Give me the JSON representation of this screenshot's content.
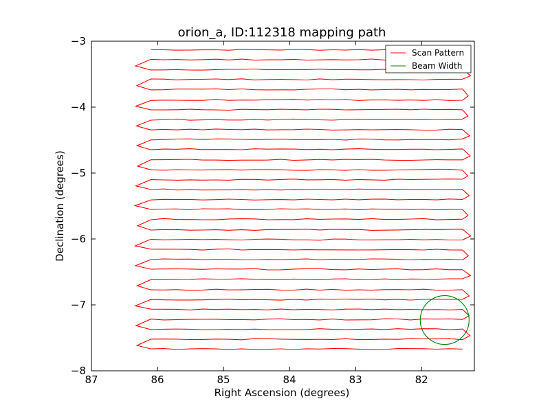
{
  "chart_data": {
    "type": "line",
    "title": "orion_a, ID:112318 mapping path",
    "xlabel": "Right Ascension (degrees)",
    "ylabel": "Declination (degrees)",
    "xlim": [
      87,
      81.2
    ],
    "ylim": [
      -8,
      -3
    ],
    "x_inverted": true,
    "x_ticks": [
      87,
      86,
      85,
      84,
      83,
      82
    ],
    "x_tick_labels": [
      "87",
      "86",
      "85",
      "84",
      "83",
      "82"
    ],
    "y_ticks": [
      -8,
      -7,
      -6,
      -5,
      -4,
      -3
    ],
    "y_tick_labels": [
      "−8",
      "−7",
      "−6",
      "−5",
      "−4",
      "−3"
    ],
    "grid": false,
    "legend_position": "top-right",
    "series": [
      {
        "name": "Scan Pattern",
        "color": "#ff0000",
        "description_scan_rows_dec": [
          -3.13,
          -3.28,
          -3.43,
          -3.58,
          -3.73,
          -3.89,
          -4.04,
          -4.19,
          -4.34,
          -4.49,
          -4.64,
          -4.8,
          -4.95,
          -5.1,
          -5.25,
          -5.4,
          -5.55,
          -5.7,
          -5.86,
          -6.01,
          -6.16,
          -6.31,
          -6.46,
          -6.61,
          -6.77,
          -6.92,
          -7.07,
          -7.22,
          -7.37,
          -7.52,
          -7.67
        ],
        "scan_west_edge_ra": 81.35,
        "scan_east_edge_ra": 86.1,
        "turnaround_east_ra": 86.3,
        "turnaround_west_ra": 81.3
      },
      {
        "name": "Beam Width",
        "color": "#008000",
        "center": [
          81.65,
          -7.23
        ],
        "radius_deg": 0.37
      }
    ]
  }
}
